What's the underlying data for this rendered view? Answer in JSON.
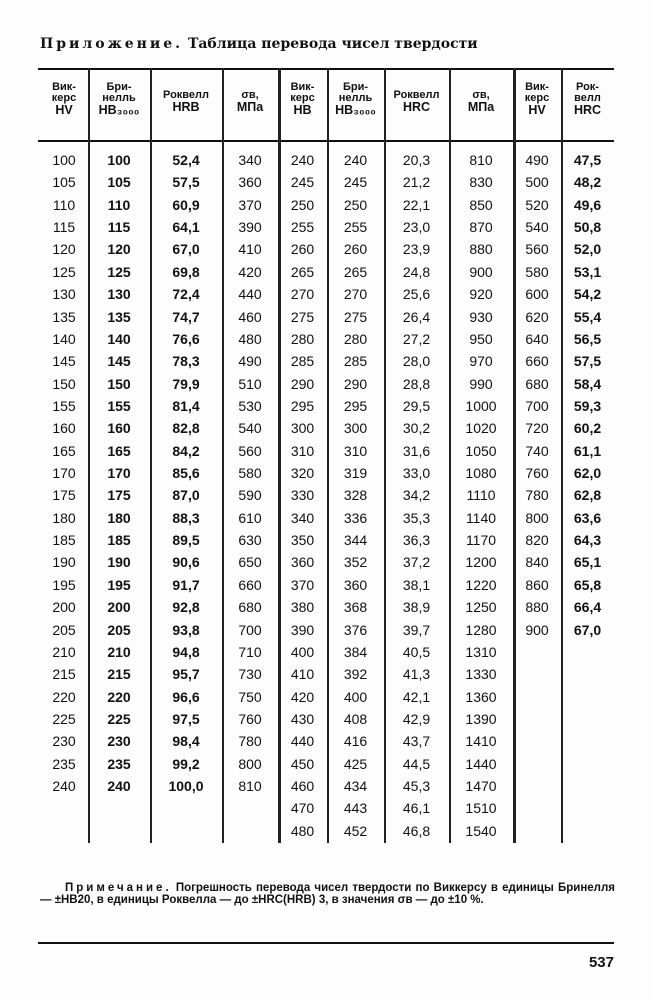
{
  "title": {
    "prefix": "Приложение.",
    "text": "Таблица перевода чисел твердости"
  },
  "headers": [
    [
      "Вик-",
      "керс",
      "HV"
    ],
    [
      "Бри-",
      "нелль",
      "HB₃₀₀₀"
    ],
    [
      "Роквелл",
      "HRB"
    ],
    [
      "σв,",
      "МПа"
    ],
    [
      "Вик-",
      "керс",
      "HB"
    ],
    [
      "Бри-",
      "нелль",
      "HB₃₀₀₀"
    ],
    [
      "Роквелл",
      "HRC"
    ],
    [
      "σв,",
      "МПа"
    ],
    [
      "Вик-",
      "керс",
      "HV"
    ],
    [
      "Рок-",
      "велл",
      "HRC"
    ]
  ],
  "columns": [
    [
      "100",
      "105",
      "110",
      "115",
      "120",
      "125",
      "130",
      "135",
      "140",
      "145",
      "150",
      "155",
      "160",
      "165",
      "170",
      "175",
      "180",
      "185",
      "190",
      "195",
      "200",
      "205",
      "210",
      "215",
      "220",
      "225",
      "230",
      "235",
      "240"
    ],
    [
      "100",
      "105",
      "110",
      "115",
      "120",
      "125",
      "130",
      "135",
      "140",
      "145",
      "150",
      "155",
      "160",
      "165",
      "170",
      "175",
      "180",
      "185",
      "190",
      "195",
      "200",
      "205",
      "210",
      "215",
      "220",
      "225",
      "230",
      "235",
      "240"
    ],
    [
      "52,4",
      "57,5",
      "60,9",
      "64,1",
      "67,0",
      "69,8",
      "72,4",
      "74,7",
      "76,6",
      "78,3",
      "79,9",
      "81,4",
      "82,8",
      "84,2",
      "85,6",
      "87,0",
      "88,3",
      "89,5",
      "90,6",
      "91,7",
      "92,8",
      "93,8",
      "94,8",
      "95,7",
      "96,6",
      "97,5",
      "98,4",
      "99,2",
      "100,0"
    ],
    [
      "340",
      "360",
      "370",
      "390",
      "410",
      "420",
      "440",
      "460",
      "480",
      "490",
      "510",
      "530",
      "540",
      "560",
      "580",
      "590",
      "610",
      "630",
      "650",
      "660",
      "680",
      "700",
      "710",
      "730",
      "750",
      "760",
      "780",
      "800",
      "810"
    ],
    [
      "240",
      "245",
      "250",
      "255",
      "260",
      "265",
      "270",
      "275",
      "280",
      "285",
      "290",
      "295",
      "300",
      "310",
      "320",
      "330",
      "340",
      "350",
      "360",
      "370",
      "380",
      "390",
      "400",
      "410",
      "420",
      "430",
      "440",
      "450",
      "460",
      "470",
      "480"
    ],
    [
      "240",
      "245",
      "250",
      "255",
      "260",
      "265",
      "270",
      "275",
      "280",
      "285",
      "290",
      "295",
      "300",
      "310",
      "319",
      "328",
      "336",
      "344",
      "352",
      "360",
      "368",
      "376",
      "384",
      "392",
      "400",
      "408",
      "416",
      "425",
      "434",
      "443",
      "452"
    ],
    [
      "20,3",
      "21,2",
      "22,1",
      "23,0",
      "23,9",
      "24,8",
      "25,6",
      "26,4",
      "27,2",
      "28,0",
      "28,8",
      "29,5",
      "30,2",
      "31,6",
      "33,0",
      "34,2",
      "35,3",
      "36,3",
      "37,2",
      "38,1",
      "38,9",
      "39,7",
      "40,5",
      "41,3",
      "42,1",
      "42,9",
      "43,7",
      "44,5",
      "45,3",
      "46,1",
      "46,8"
    ],
    [
      "810",
      "830",
      "850",
      "870",
      "880",
      "900",
      "920",
      "930",
      "950",
      "970",
      "990",
      "1000",
      "1020",
      "1050",
      "1080",
      "1110",
      "1140",
      "1170",
      "1200",
      "1220",
      "1250",
      "1280",
      "1310",
      "1330",
      "1360",
      "1390",
      "1410",
      "1440",
      "1470",
      "1510",
      "1540"
    ],
    [
      "490",
      "500",
      "520",
      "540",
      "560",
      "580",
      "600",
      "620",
      "640",
      "660",
      "680",
      "700",
      "720",
      "740",
      "760",
      "780",
      "800",
      "820",
      "840",
      "860",
      "880",
      "900"
    ],
    [
      "47,5",
      "48,2",
      "49,6",
      "50,8",
      "52,0",
      "53,1",
      "54,2",
      "55,4",
      "56,5",
      "57,5",
      "58,4",
      "59,3",
      "60,2",
      "61,1",
      "62,0",
      "62,8",
      "63,6",
      "64,3",
      "65,1",
      "65,8",
      "66,4",
      "67,0"
    ]
  ],
  "note": {
    "label": "Примечание.",
    "text": "Погрешность перевода чисел твердости по Виккерсу в единицы Бринелля — ±HB20, в единицы Роквелла — до ±HRC(HRB) 3, в значения σв — до ±10 %."
  },
  "page_number": "537"
}
